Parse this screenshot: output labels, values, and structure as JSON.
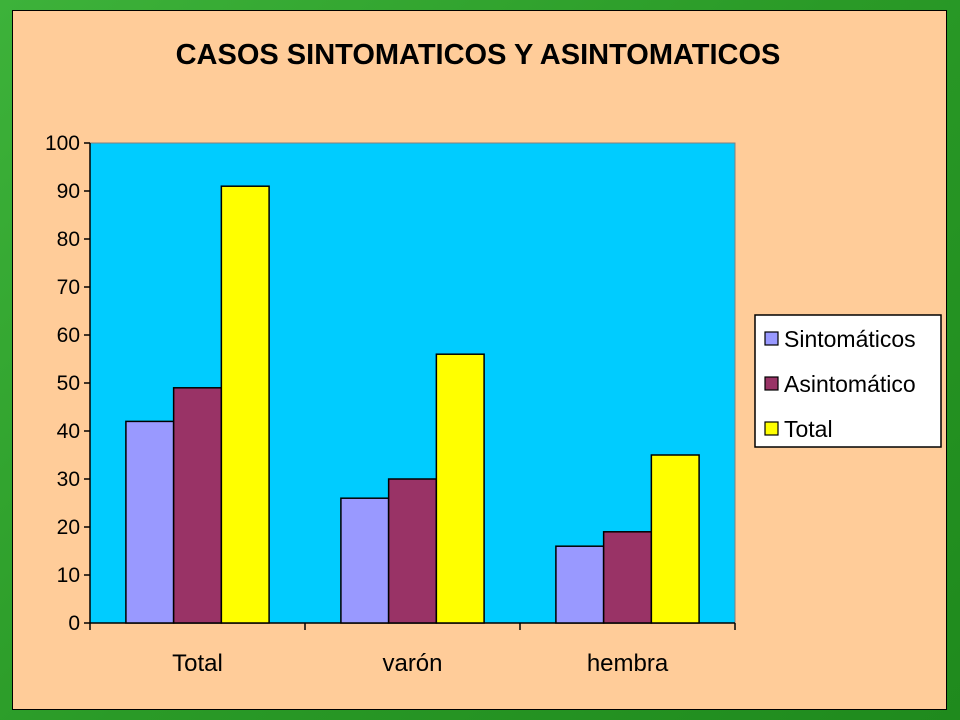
{
  "chart_data": {
    "type": "bar",
    "title": "CASOS SINTOMATICOS Y ASINTOMATICOS",
    "categories": [
      "Total",
      "varón",
      "hembra"
    ],
    "series": [
      {
        "name": "Sintomáticos",
        "color": "#9999ff",
        "values": [
          42,
          26,
          16
        ]
      },
      {
        "name": "Asintomático",
        "color": "#993366",
        "values": [
          49,
          30,
          19
        ]
      },
      {
        "name": "Total",
        "color": "#ffff00",
        "values": [
          91,
          56,
          35
        ]
      }
    ],
    "ylim": [
      0,
      100
    ],
    "yticks": [
      0,
      10,
      20,
      30,
      40,
      50,
      60,
      70,
      80,
      90,
      100
    ],
    "plot_background": "#00ccff",
    "slide_background": "#ffcc99",
    "grid": false,
    "legend_position": "right"
  }
}
